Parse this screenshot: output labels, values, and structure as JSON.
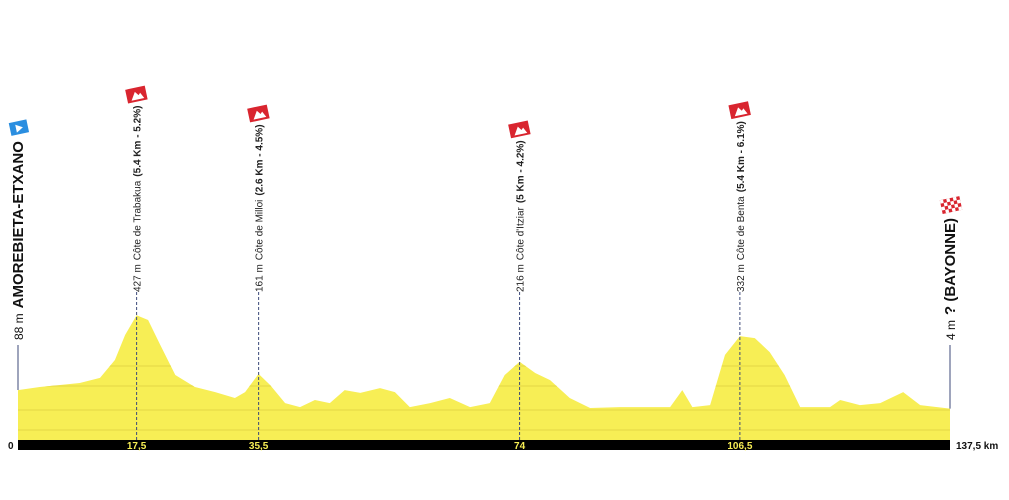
{
  "chart_data": {
    "type": "area",
    "color": "#f7ee55",
    "x": [
      0,
      3.2,
      6.2,
      9.1,
      12.1,
      14.3,
      15.8,
      17.5,
      19.2,
      21.0,
      23.2,
      26.1,
      29.1,
      32.0,
      33.5,
      35.5,
      37.2,
      39.4,
      41.6,
      43.8,
      46.0,
      48.2,
      50.5,
      53.4,
      55.6,
      57.8,
      60.8,
      63.7,
      66.7,
      69.6,
      71.8,
      74,
      76.3,
      78.5,
      81.4,
      84.4,
      88.8,
      93.2,
      96.2,
      98.0,
      99.5,
      102.1,
      104.3,
      106.5,
      108.7,
      110.9,
      113.1,
      115.4,
      119.8,
      121.3,
      124.2,
      127.2,
      130.6,
      133.1,
      137.5
    ],
    "values": [
      88,
      102,
      111,
      120,
      143,
      224,
      337,
      427,
      405,
      292,
      156,
      102,
      79,
      52,
      79,
      161,
      111,
      29,
      11,
      43,
      29,
      88,
      75,
      97,
      79,
      11,
      29,
      52,
      11,
      29,
      156,
      216,
      165,
      133,
      52,
      7,
      11,
      11,
      11,
      88,
      11,
      20,
      247,
      332,
      323,
      260,
      156,
      11,
      11,
      43,
      20,
      29,
      79,
      20,
      4
    ],
    "xlim": [
      0,
      137.5
    ],
    "ylim": [
      -138,
      1808
    ],
    "xticks": [
      0,
      {
        "value": 17.5,
        "label": "17,5"
      },
      {
        "value": 35.5,
        "label": "35,5"
      },
      74,
      {
        "value": 106.5,
        "label": "106,5"
      },
      {
        "value": 137.5,
        "label": "137,5 km"
      }
    ],
    "start": {
      "elevation": 88,
      "label": "88 m",
      "name": "AMOREBIETA-ETXANO"
    },
    "finish": {
      "elevation": 4,
      "label": "4 m",
      "name": "? (BAYONNE)"
    },
    "annotations": [
      {
        "x": 17.5,
        "elevation": 427,
        "label": "427 m",
        "name": "Côte de Trabakua",
        "detail": "(5.4 Km - 5.2%)"
      },
      {
        "x": 35.5,
        "elevation": 161,
        "label": "161 m",
        "name": "Côte de Milloi",
        "detail": "(2.6 Km - 4.5%)"
      },
      {
        "x": 74,
        "elevation": 216,
        "label": "216 m",
        "name": "Côte d'Itziar",
        "detail": "(5 Km - 4.2%)"
      },
      {
        "x": 106.5,
        "elevation": 332,
        "label": "332 m",
        "name": "Côte de Benta",
        "detail": "(5.4 Km - 6.1%)"
      }
    ]
  }
}
